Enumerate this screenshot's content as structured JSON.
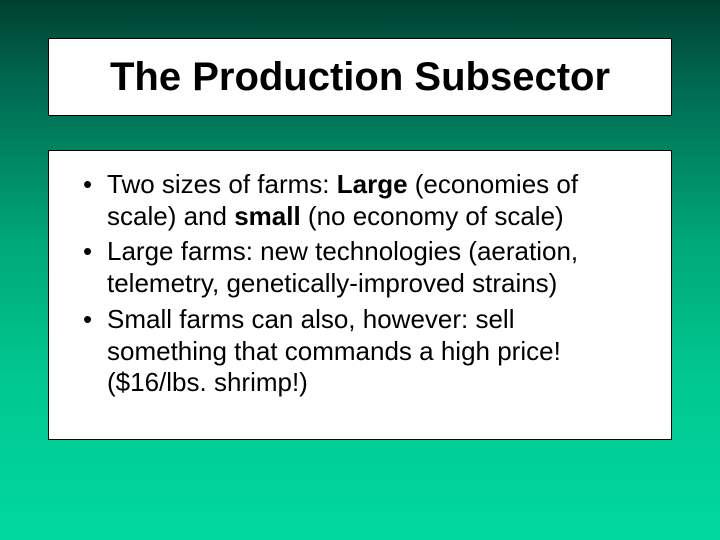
{
  "background": {
    "gradient_top": "#004030",
    "gradient_bottom": "#00d8a0"
  },
  "title": {
    "text": "The Production Subsector",
    "fontsize": 40,
    "font_weight": "bold",
    "color": "#000000",
    "box_bg": "#ffffff",
    "box_border": "#000000"
  },
  "body": {
    "box_bg": "#ffffff",
    "box_border": "#000000",
    "fontsize": 26,
    "color": "#000000",
    "bullets": [
      {
        "runs": [
          {
            "t": "Two sizes of farms:  ",
            "bold": false
          },
          {
            "t": "Large",
            "bold": true
          },
          {
            "t": " (economies of scale) and ",
            "bold": false
          },
          {
            "t": "small",
            "bold": true
          },
          {
            "t": " (no economy of scale)",
            "bold": false
          }
        ]
      },
      {
        "runs": [
          {
            "t": "Large farms: new technologies (aeration, telemetry, genetically-improved strains)",
            "bold": false
          }
        ]
      },
      {
        "runs": [
          {
            "t": "Small farms can also, however:  sell something that commands a high price! ($16/lbs. shrimp!)",
            "bold": false
          }
        ]
      }
    ]
  }
}
